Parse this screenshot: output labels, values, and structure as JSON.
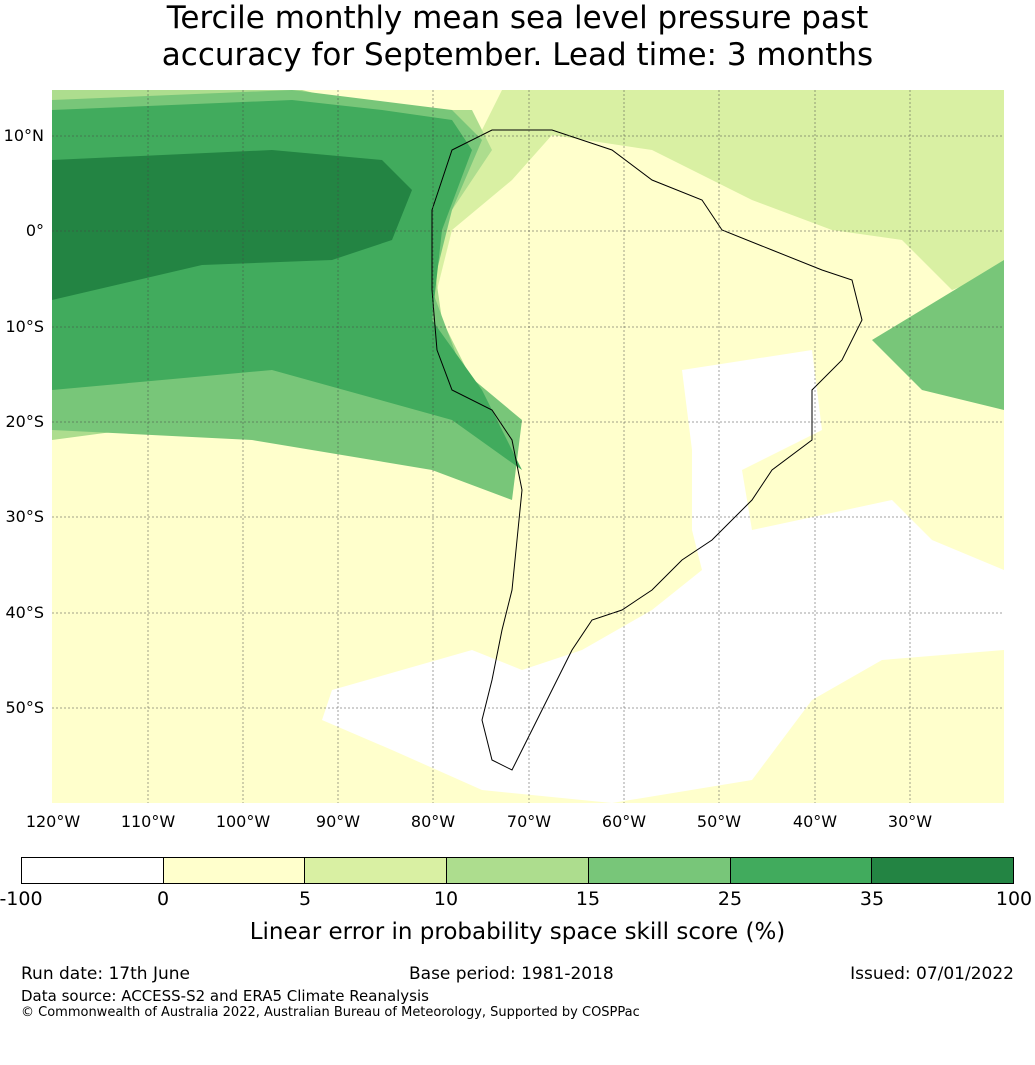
{
  "title_line1": "Tercile monthly mean sea level pressure past",
  "title_line2": "accuracy for September. Lead time: 3 months",
  "lat_labels": [
    "10°N",
    "0°",
    "10°S",
    "20°S",
    "30°S",
    "40°S",
    "50°S"
  ],
  "lon_labels": [
    "120°W",
    "110°W",
    "100°W",
    "90°W",
    "80°W",
    "70°W",
    "60°W",
    "50°W",
    "40°W",
    "30°W"
  ],
  "colorbar": {
    "colors": [
      "#ffffff",
      "#ffffcc",
      "#d9f0a3",
      "#addd8e",
      "#78c679",
      "#41ab5d",
      "#238443"
    ],
    "ticks": [
      "-100",
      "0",
      "5",
      "10",
      "15",
      "25",
      "35",
      "100"
    ],
    "label": "Linear error in probability space skill score (%)"
  },
  "footer": {
    "run_date": "Run date: 17th June",
    "base_period": "Base period: 1981-2018",
    "issued": "Issued: 07/01/2022",
    "data_source": "Data source: ACCESS-S2 and ERA5 Climate Reanalysis",
    "copyright": "© Commonwealth of Australia 2022, Australian Bureau of Meteorology, Supported by COSPPac"
  }
}
